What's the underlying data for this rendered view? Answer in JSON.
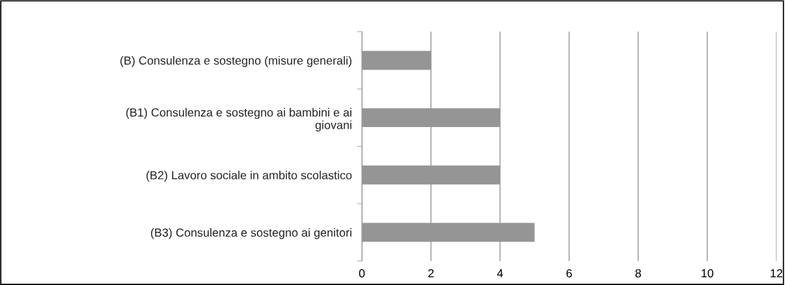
{
  "chart_data": {
    "type": "bar",
    "orientation": "horizontal",
    "categories": [
      "(B) Consulenza e sostegno (misure generali)",
      "(B1) Consulenza e sostegno ai bambini e ai\ngiovani",
      "(B2) Lavoro sociale in ambito scolastico",
      "(B3) Consulenza e sostegno ai genitori"
    ],
    "values": [
      2,
      4,
      4,
      5
    ],
    "color": "#959595",
    "xlim": [
      0,
      12
    ],
    "xticks": [
      0,
      2,
      4,
      6,
      8,
      10,
      12
    ],
    "grid": "x"
  }
}
